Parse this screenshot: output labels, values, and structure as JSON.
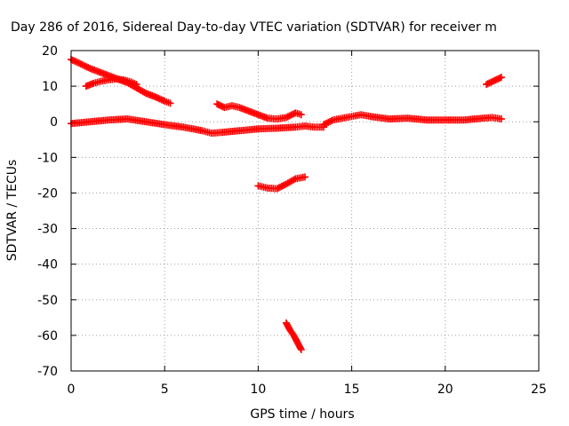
{
  "chart_data": {
    "type": "scatter",
    "title": "Day 286 of 2016, Sidereal Day-to-day VTEC variation (SDTVAR) for receiver m",
    "xlabel": "GPS time / hours",
    "ylabel": "SDTVAR / TECUs",
    "xlim": [
      0,
      25
    ],
    "ylim": [
      -70,
      20
    ],
    "xticks": [
      0,
      5,
      10,
      15,
      20,
      25
    ],
    "yticks": [
      -70,
      -60,
      -50,
      -40,
      -30,
      -20,
      -10,
      0,
      10,
      20
    ],
    "grid": true,
    "legend": "none",
    "marker": "plus",
    "color": "#ff0000",
    "series": [
      {
        "x": [
          0.0,
          0.5,
          1.0,
          1.5,
          2.0,
          2.5,
          3.0,
          3.5,
          4.0,
          4.5,
          5.0,
          5.3
        ],
        "y": [
          17.5,
          16.3,
          15.0,
          14.0,
          13.0,
          12.0,
          11.0,
          9.5,
          8.0,
          7.0,
          5.8,
          5.2
        ]
      },
      {
        "x": [
          0.8,
          1.2,
          1.6,
          2.0,
          2.4,
          2.8,
          3.2,
          3.5
        ],
        "y": [
          10.0,
          10.8,
          11.4,
          11.8,
          12.0,
          11.8,
          11.2,
          10.5
        ]
      },
      {
        "x": [
          0.0,
          1.0,
          2.0,
          3.0,
          4.0,
          5.0,
          6.0,
          7.0,
          7.5,
          8.0,
          9.0,
          10.0,
          11.0,
          12.0,
          12.5,
          13.0,
          13.5
        ],
        "y": [
          -0.5,
          0.0,
          0.5,
          0.8,
          0.0,
          -0.8,
          -1.5,
          -2.5,
          -3.2,
          -3.0,
          -2.5,
          -2.0,
          -1.8,
          -1.5,
          -1.2,
          -1.5,
          -1.5
        ]
      },
      {
        "x": [
          7.8,
          8.2,
          8.6,
          9.0,
          9.5,
          10.0,
          10.5,
          11.0,
          11.5,
          12.0,
          12.3
        ],
        "y": [
          5.0,
          4.0,
          4.5,
          4.0,
          3.0,
          2.0,
          1.0,
          0.8,
          1.2,
          2.5,
          2.0
        ]
      },
      {
        "x": [
          13.5,
          14.0,
          14.5,
          15.0,
          15.5,
          16.0,
          17.0,
          18.0,
          19.0,
          20.0,
          21.0,
          22.0,
          22.5,
          23.0
        ],
        "y": [
          -0.8,
          0.5,
          1.0,
          1.5,
          2.0,
          1.5,
          0.8,
          1.0,
          0.5,
          0.5,
          0.5,
          1.0,
          1.2,
          0.8
        ]
      },
      {
        "x": [
          10.0,
          10.5,
          11.0,
          11.5,
          12.0,
          12.5
        ],
        "y": [
          -18.0,
          -18.6,
          -18.8,
          -17.5,
          -16.0,
          -15.5
        ]
      },
      {
        "x": [
          11.5,
          11.7,
          11.9,
          12.1,
          12.3
        ],
        "y": [
          -56.5,
          -58.5,
          -60.0,
          -62.0,
          -64.0
        ]
      },
      {
        "x": [
          22.2,
          22.6,
          23.0
        ],
        "y": [
          10.5,
          11.5,
          12.5
        ]
      }
    ]
  }
}
